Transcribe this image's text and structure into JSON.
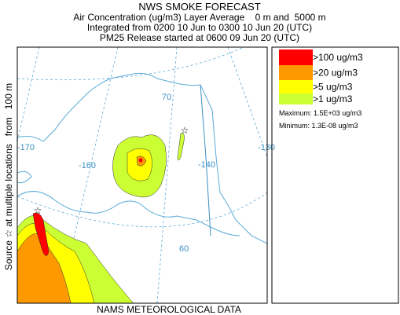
{
  "header": {
    "title": "NWS SMOKE FORECAST",
    "lines": [
      "Air Concentration (ug/m3) Layer Average    0 m and  5000 m",
      "Integrated from 0200 10 Jun to 0300 10 Jun 20 (UTC)",
      "PM25 Release started at 0600 09 Jun 20 (UTC)"
    ]
  },
  "side_label": "Source ☆ at multiple locations   from   100 m",
  "footer": "NAMS METEOROLOGICAL DATA",
  "legend": {
    "items": [
      {
        "label": ">100 ug/m3",
        "color": "#ff0000"
      },
      {
        "label": ">20 ug/m3",
        "color": "#ff9900"
      },
      {
        "label": ">5 ug/m3",
        "color": "#ffff00"
      },
      {
        "label": ">1 ug/m3",
        "color": "#ccff33"
      }
    ],
    "maximum": "Maximum: 1.5E+03 ug/m3",
    "minimum": "Minimum: 1.3E-08 ug/m3"
  },
  "map": {
    "labels": [
      "70",
      "-170",
      "-160",
      "-140",
      "-130",
      "60"
    ]
  }
}
